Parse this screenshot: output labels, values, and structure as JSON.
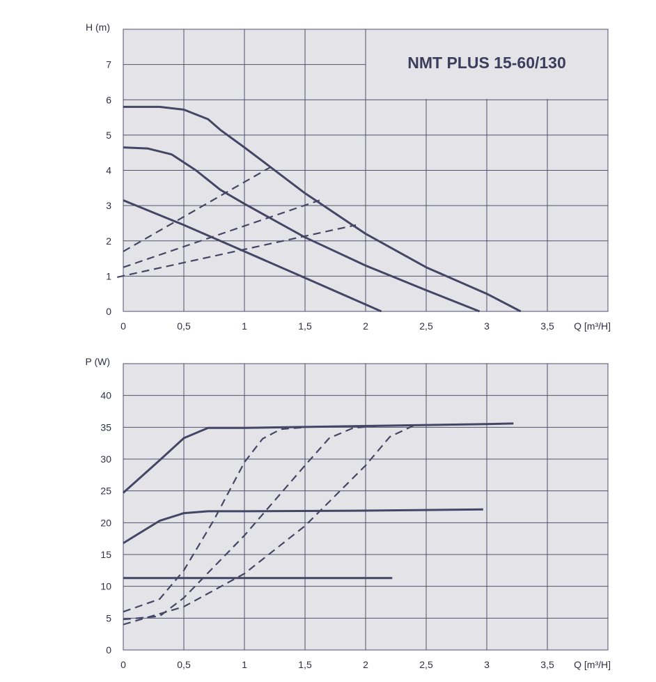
{
  "colors": {
    "background": "#e4e4e8",
    "grid": "#4f4f6b",
    "curve": "#454565",
    "text": "#2f2f45",
    "title": "#3c3c5c"
  },
  "chart_data": [
    {
      "type": "line",
      "title": "NMT PLUS 15-60/130",
      "ylabel": "H (m)",
      "xlabel": "Q [m³/H]",
      "xlim": [
        0,
        4
      ],
      "ylim": [
        0,
        8
      ],
      "x_ticks": [
        0,
        0.5,
        1,
        1.5,
        2,
        2.5,
        3,
        3.5
      ],
      "x_tick_labels": [
        "0",
        "0,5",
        "1",
        "1,5",
        "2",
        "2,5",
        "3",
        "3,5"
      ],
      "y_ticks": [
        0,
        1,
        2,
        3,
        4,
        5,
        6,
        7
      ],
      "y_tick_labels": [
        "0",
        "1",
        "2",
        "3",
        "4",
        "5",
        "6",
        "7"
      ],
      "grid": true,
      "series": [
        {
          "style": "solid",
          "x": [
            0,
            0.3,
            0.5,
            0.7,
            0.8,
            1.0,
            1.5,
            2.0,
            2.5,
            3.0,
            3.28
          ],
          "y": [
            5.8,
            5.8,
            5.72,
            5.45,
            5.15,
            4.65,
            3.35,
            2.2,
            1.25,
            0.5,
            0
          ]
        },
        {
          "style": "solid",
          "x": [
            0,
            0.2,
            0.4,
            0.6,
            0.8,
            1.0,
            1.5,
            2.0,
            2.5,
            2.94
          ],
          "y": [
            4.65,
            4.62,
            4.45,
            4.0,
            3.45,
            3.05,
            2.1,
            1.3,
            0.6,
            0
          ]
        },
        {
          "style": "solid",
          "x": [
            0,
            0.5,
            1.0,
            1.5,
            2.13
          ],
          "y": [
            3.15,
            2.45,
            1.7,
            0.95,
            0
          ]
        },
        {
          "style": "dashed",
          "x": [
            0,
            1.22
          ],
          "y": [
            1.7,
            4.1
          ]
        },
        {
          "style": "dashed",
          "x": [
            0,
            1.62
          ],
          "y": [
            1.25,
            3.15
          ]
        },
        {
          "style": "dashed",
          "x": [
            -0.05,
            1.92
          ],
          "y": [
            0.97,
            2.45
          ]
        }
      ]
    },
    {
      "type": "line",
      "title": "",
      "ylabel": "P (W)",
      "xlabel": "Q [m³/H]",
      "xlim": [
        0,
        4
      ],
      "ylim": [
        0,
        45
      ],
      "x_ticks": [
        0,
        0.5,
        1,
        1.5,
        2,
        2.5,
        3,
        3.5
      ],
      "x_tick_labels": [
        "0",
        "0,5",
        "1",
        "1,5",
        "2",
        "2,5",
        "3",
        "3,5"
      ],
      "y_ticks": [
        0,
        5,
        10,
        15,
        20,
        25,
        30,
        35,
        40
      ],
      "y_tick_labels": [
        "0",
        "5",
        "10",
        "15",
        "20",
        "25",
        "30",
        "35",
        "40"
      ],
      "grid": true,
      "series": [
        {
          "style": "solid",
          "x": [
            0,
            0.3,
            0.5,
            0.7,
            1.0,
            2.0,
            3.0,
            3.22
          ],
          "y": [
            24.7,
            29.8,
            33.3,
            34.9,
            34.9,
            35.2,
            35.5,
            35.6
          ]
        },
        {
          "style": "solid",
          "x": [
            0,
            0.3,
            0.5,
            0.7,
            1.0,
            2.0,
            2.97
          ],
          "y": [
            16.8,
            20.3,
            21.5,
            21.8,
            21.8,
            21.9,
            22.1
          ]
        },
        {
          "style": "solid",
          "x": [
            0,
            1.0,
            2.22
          ],
          "y": [
            11.3,
            11.3,
            11.3
          ]
        },
        {
          "style": "dashed",
          "x": [
            0,
            0.3,
            0.5,
            0.75,
            1.0,
            1.15,
            1.3,
            1.5
          ],
          "y": [
            6.0,
            8.0,
            12.5,
            20.5,
            29.5,
            33.2,
            34.7,
            35.0
          ]
        },
        {
          "style": "dashed",
          "x": [
            0,
            0.3,
            0.5,
            1.0,
            1.5,
            1.7,
            1.9,
            2.1
          ],
          "y": [
            4.8,
            5.3,
            8.2,
            18.0,
            29.0,
            33.3,
            34.9,
            35.2
          ]
        },
        {
          "style": "dashed",
          "x": [
            0,
            0.5,
            1.0,
            1.5,
            2.0,
            2.2,
            2.4
          ],
          "y": [
            4.0,
            6.8,
            12.0,
            19.5,
            29.0,
            33.5,
            35.3
          ]
        }
      ]
    }
  ]
}
